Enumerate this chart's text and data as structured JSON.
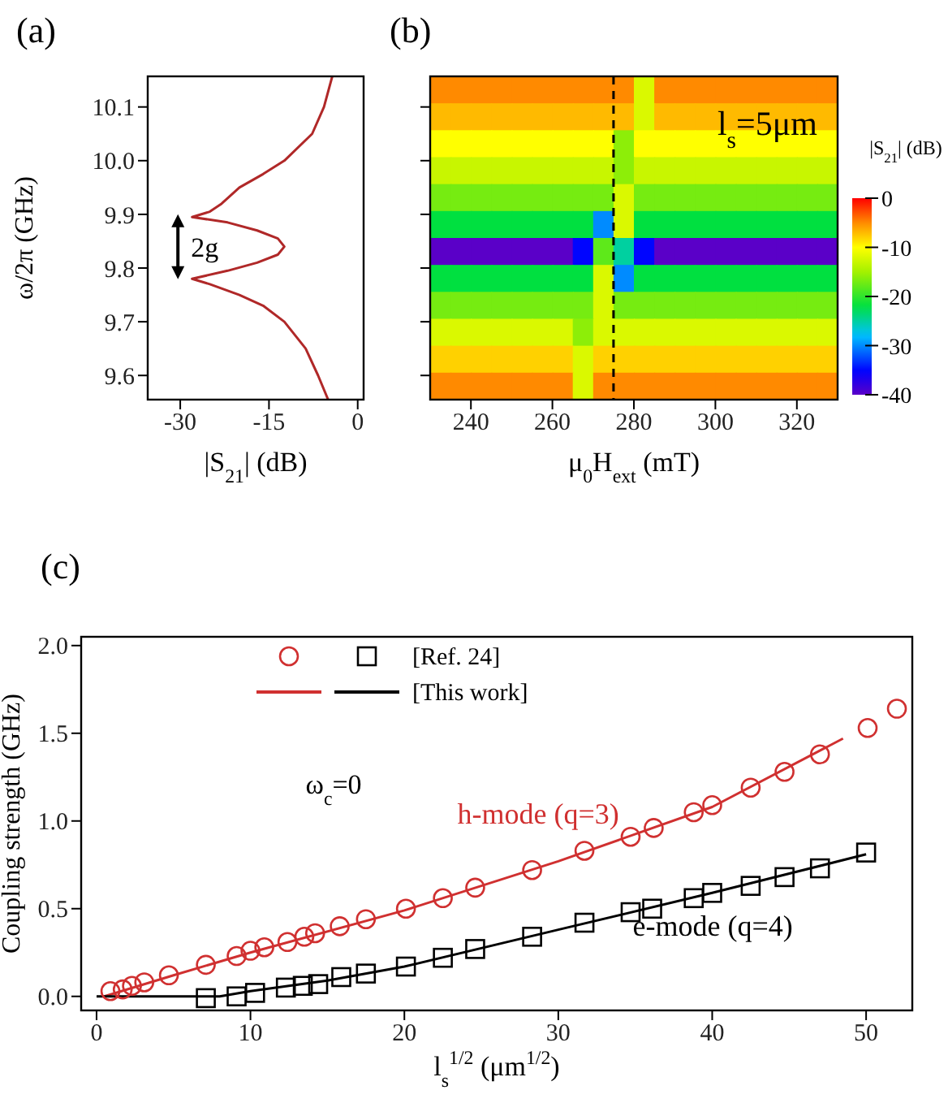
{
  "chart_data": [
    {
      "type": "line",
      "title": "(a)",
      "xlabel": "|S$_{21}$| (dB)",
      "ylabel": "ω/2π (GHz)",
      "xlim": [
        -35.5,
        1
      ],
      "xticks": [
        -30,
        -15,
        0
      ],
      "ylim": [
        9.555,
        10.157
      ],
      "yticks": [
        9.6,
        9.7,
        9.8,
        9.9,
        {
          "value": 10,
          "label": "10.0"
        },
        10.1
      ],
      "series": [
        {
          "color": "#b02828",
          "x": [
            -5,
            -6.7,
            -8.8,
            -12.4,
            -16,
            -20,
            -25,
            -28,
            -22,
            -17,
            -13.5,
            -12.4,
            -13.5,
            -17,
            -22,
            -28,
            -25,
            -23,
            -20,
            -16,
            -12.4,
            -7.7,
            -5.7,
            -4.3
          ],
          "values": [
            9.555,
            9.6,
            9.65,
            9.7,
            9.73,
            9.75,
            9.77,
            9.78,
            9.795,
            9.81,
            9.825,
            9.84,
            9.855,
            9.87,
            9.885,
            9.895,
            9.905,
            9.92,
            9.95,
            9.975,
            10.0,
            10.05,
            10.1,
            10.157
          ]
        }
      ],
      "annotations": [
        "2g"
      ]
    },
    {
      "type": "heatmap",
      "title": "(b)",
      "xlabel": "μ$_{0}$H$_{ext}$ (mT)",
      "clabel": "|S$_{21}$| (dB)",
      "x": [
        232.5,
        237.5,
        242.5,
        247.5,
        252.5,
        257.5,
        262.5,
        267.5,
        272.5,
        277.5,
        282.5,
        287.5,
        292.5,
        297.5,
        302.5,
        307.5,
        312.5,
        317.5,
        322.5,
        327.5
      ],
      "xlim": [
        230,
        330
      ],
      "xticks": [
        240,
        260,
        280,
        300,
        320
      ],
      "ylim": [
        9.555,
        10.157
      ],
      "yticks": [
        {
          "value": 9.6,
          "label": null
        },
        {
          "value": 9.7,
          "label": null
        },
        {
          "value": 9.8,
          "label": null
        },
        {
          "value": 9.9,
          "label": null
        },
        {
          "value": 10,
          "label": null
        },
        {
          "value": 10.1,
          "label": null
        }
      ],
      "tick_labels": "x",
      "clim": [
        -40,
        0
      ],
      "cticks": [
        0,
        -10,
        -20,
        -30,
        -40
      ],
      "cells": [
        [
          -5,
          -5,
          -5,
          -5,
          -5,
          -5,
          -5,
          -5,
          -5,
          -5,
          -12,
          -5,
          -5,
          -5,
          -5,
          -5,
          -5,
          -5,
          -5,
          -5
        ],
        [
          -7,
          -7,
          -7,
          -7,
          -7,
          -7,
          -7,
          -7,
          -7,
          -7,
          -12,
          -7,
          -7,
          -7,
          -7,
          -7,
          -7,
          -7,
          -7,
          -7
        ],
        [
          -10,
          -10,
          -10,
          -10,
          -10,
          -10,
          -10,
          -10,
          -10,
          -16,
          -10,
          -10,
          -10,
          -10,
          -10,
          -10,
          -10,
          -10,
          -10,
          -10
        ],
        [
          -13,
          -13,
          -13,
          -13,
          -13,
          -13,
          -13,
          -13,
          -13,
          -16,
          -13,
          -13,
          -13,
          -13,
          -13,
          -13,
          -13,
          -13,
          -13,
          -13
        ],
        [
          -17,
          -17,
          -17,
          -17,
          -17,
          -17,
          -17,
          -17,
          -17,
          -12,
          -17,
          -17,
          -17,
          -17,
          -17,
          -17,
          -17,
          -17,
          -17,
          -17
        ],
        [
          -22,
          -22,
          -22,
          -22,
          -22,
          -22,
          -22,
          -22,
          -30,
          -12,
          -22,
          -22,
          -22,
          -22,
          -22,
          -22,
          -22,
          -22,
          -22,
          -22
        ],
        [
          -40,
          -40,
          -40,
          -40,
          -40,
          -40,
          -40,
          -35,
          -18,
          -25,
          -35,
          -40,
          -40,
          -40,
          -40,
          -40,
          -40,
          -40,
          -40,
          -40
        ],
        [
          -22,
          -22,
          -22,
          -22,
          -22,
          -22,
          -22,
          -22,
          -12,
          -30,
          -22,
          -22,
          -22,
          -22,
          -22,
          -22,
          -22,
          -22,
          -22,
          -22
        ],
        [
          -17,
          -17,
          -17,
          -17,
          -17,
          -17,
          -17,
          -17,
          -12,
          -17,
          -17,
          -17,
          -17,
          -17,
          -17,
          -17,
          -17,
          -17,
          -17,
          -17
        ],
        [
          -12,
          -12,
          -12,
          -12,
          -12,
          -12,
          -12,
          -16,
          -12,
          -12,
          -12,
          -12,
          -12,
          -12,
          -12,
          -12,
          -12,
          -12,
          -12,
          -12
        ],
        [
          -8,
          -8,
          -8,
          -8,
          -8,
          -8,
          -8,
          -12,
          -8,
          -8,
          -8,
          -8,
          -8,
          -8,
          -8,
          -8,
          -8,
          -8,
          -8,
          -8
        ],
        [
          -5,
          -5,
          -5,
          -5,
          -5,
          -5,
          -5,
          -12,
          -5,
          -5,
          -5,
          -5,
          -5,
          -5,
          -5,
          -5,
          -5,
          -5,
          -5,
          -5
        ]
      ],
      "ref_lines": [
        {
          "axis": "x",
          "value": 275,
          "color": "#000000",
          "line_style": "dashed"
        }
      ],
      "annotations": [
        "l$_{s}$=5μm"
      ]
    },
    {
      "type": "scatter",
      "title": "(c)",
      "xlabel": "l$_{s}$$^{1/2}$ (μm$^{1/2}$)",
      "ylabel": "Coupling strength (GHz)",
      "xlim": [
        -1,
        53
      ],
      "xticks": [
        0,
        10,
        20,
        30,
        40,
        50
      ],
      "ylim": [
        -0.08,
        2.05
      ],
      "yticks": [
        {
          "value": 0,
          "label": "0.0"
        },
        0.5,
        {
          "value": 1,
          "label": "1.0"
        },
        1.5,
        {
          "value": 2,
          "label": "2.0"
        }
      ],
      "legend": "top left",
      "series": [
        {
          "color": "#d03030",
          "marker": "circle",
          "x": [
            0.9,
            1.7,
            2.3,
            3.1,
            4.7,
            7.1,
            9.1,
            10.0,
            10.9,
            12.4,
            13.5,
            14.2,
            15.8,
            17.5,
            20.1,
            22.5,
            24.6,
            28.3,
            31.7,
            34.7,
            36.2,
            38.8,
            40.0,
            42.5,
            44.7,
            47.0,
            50.1,
            52.0
          ],
          "values": [
            0.03,
            0.04,
            0.06,
            0.08,
            0.12,
            0.18,
            0.23,
            0.26,
            0.28,
            0.31,
            0.34,
            0.36,
            0.4,
            0.44,
            0.5,
            0.56,
            0.62,
            0.72,
            0.83,
            0.91,
            0.96,
            1.05,
            1.09,
            1.19,
            1.28,
            1.38,
            1.53,
            1.64
          ]
        },
        {
          "name": "[Ref. 24]",
          "color": "#000000",
          "marker": "square",
          "x": [
            7.1,
            9.1,
            10.3,
            12.3,
            13.4,
            14.4,
            15.9,
            17.5,
            20.1,
            22.5,
            24.6,
            28.3,
            31.7,
            34.7,
            36.1,
            38.8,
            40.0,
            42.5,
            44.7,
            47.0,
            50.0
          ],
          "values": [
            -0.01,
            0.0,
            0.02,
            0.05,
            0.06,
            0.07,
            0.11,
            0.13,
            0.17,
            0.22,
            0.27,
            0.34,
            0.42,
            0.48,
            0.5,
            0.56,
            0.59,
            0.63,
            0.68,
            0.73,
            0.82
          ]
        },
        {
          "type": "line",
          "color": "#d03030",
          "x": [
            0.5,
            5,
            10,
            20,
            30,
            40,
            48.5
          ],
          "values": [
            0.0,
            0.12,
            0.25,
            0.49,
            0.77,
            1.08,
            1.47
          ]
        },
        {
          "type": "line",
          "name": "[This work]",
          "color": "#000000",
          "x": [
            0,
            5,
            8,
            10,
            15,
            20,
            30,
            40,
            50
          ],
          "values": [
            0.0,
            0.0,
            0.0,
            0.03,
            0.09,
            0.17,
            0.38,
            0.59,
            0.81
          ]
        }
      ],
      "annotations": [
        "ω$_{c}$=0",
        "h-mode (q=3)",
        "e-mode (q=4)"
      ]
    }
  ]
}
